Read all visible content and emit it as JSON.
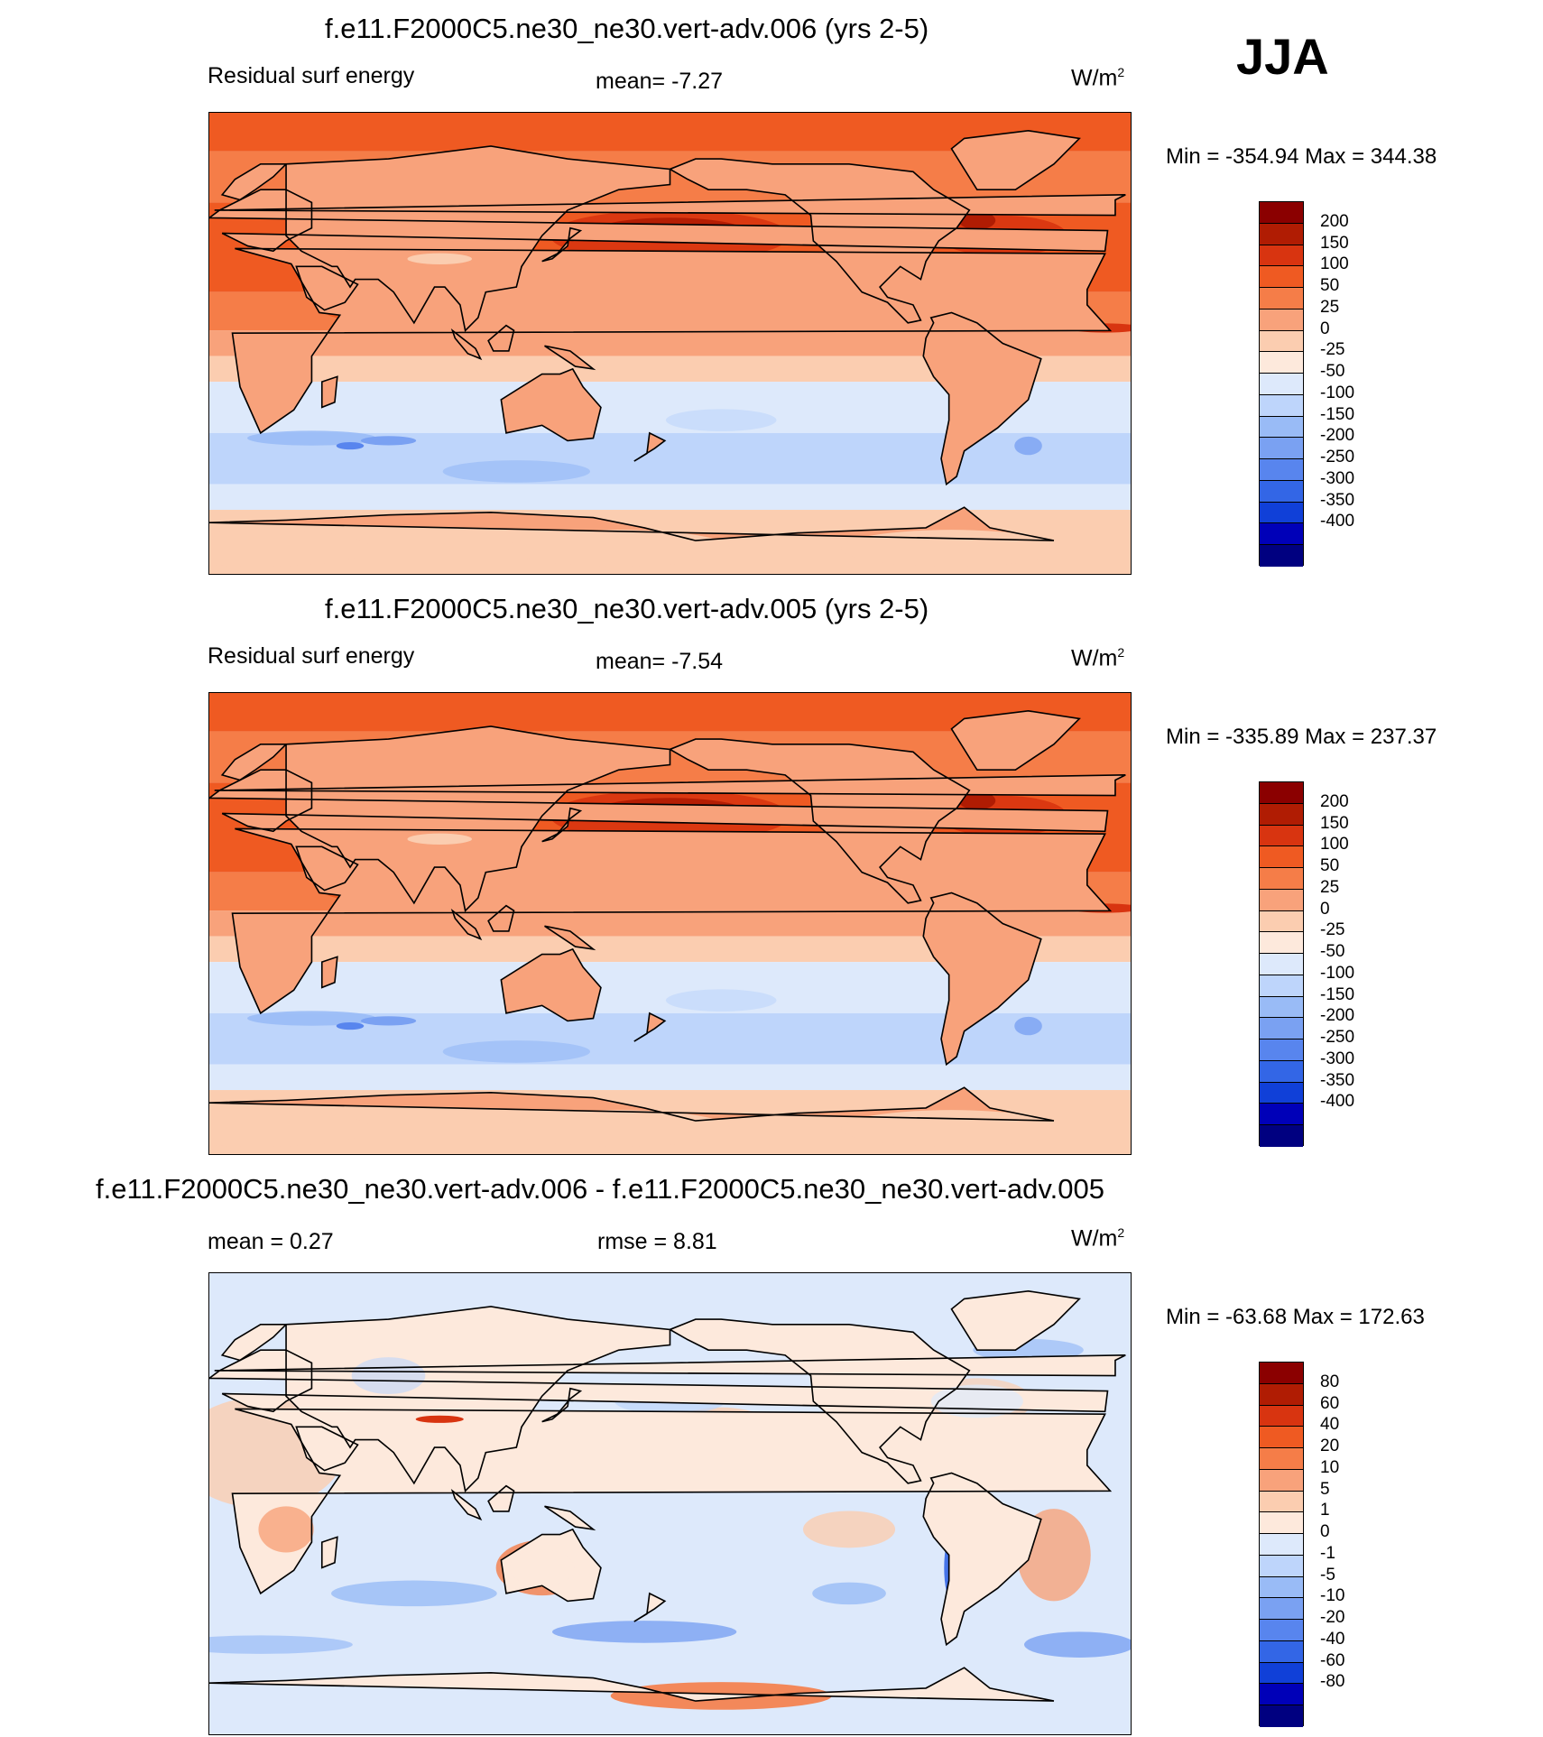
{
  "season": "JJA",
  "panels": [
    {
      "id": "p1",
      "title": "f.e11.F2000C5.ne30_ne30.vert-adv.006 (yrs 2-5)",
      "left_label": "Residual surf energy",
      "center_label": "mean=  -7.27",
      "units": "W/m",
      "units_sup": "2",
      "minmax": "Min = -354.94 Max = 344.38",
      "kind": "field",
      "colorbar": {
        "labels": [
          "200",
          "150",
          "100",
          "50",
          "25",
          "0",
          "-25",
          "-50",
          "-100",
          "-150",
          "-200",
          "-250",
          "-300",
          "-350",
          "-400"
        ],
        "colors": [
          "#8b0000",
          "#b01c03",
          "#d83410",
          "#ef5a22",
          "#f57d48",
          "#f8a27b",
          "#fbcdb0",
          "#fde9dc",
          "#dde9fb",
          "#bed5fb",
          "#99bbf6",
          "#7aa1f2",
          "#5885ee",
          "#3366e6",
          "#1040d8",
          "#0000b8",
          "#000080"
        ]
      }
    },
    {
      "id": "p2",
      "title": "f.e11.F2000C5.ne30_ne30.vert-adv.005 (yrs 2-5)",
      "left_label": "Residual surf energy",
      "center_label": "mean=  -7.54",
      "units": "W/m",
      "units_sup": "2",
      "minmax": "Min = -335.89 Max = 237.37",
      "kind": "field",
      "colorbar": {
        "labels": [
          "200",
          "150",
          "100",
          "50",
          "25",
          "0",
          "-25",
          "-50",
          "-100",
          "-150",
          "-200",
          "-250",
          "-300",
          "-350",
          "-400"
        ],
        "colors": [
          "#8b0000",
          "#b01c03",
          "#d83410",
          "#ef5a22",
          "#f57d48",
          "#f8a27b",
          "#fbcdb0",
          "#fde9dc",
          "#dde9fb",
          "#bed5fb",
          "#99bbf6",
          "#7aa1f2",
          "#5885ee",
          "#3366e6",
          "#1040d8",
          "#0000b8",
          "#000080"
        ]
      }
    },
    {
      "id": "p3",
      "title": "f.e11.F2000C5.ne30_ne30.vert-adv.006 - f.e11.F2000C5.ne30_ne30.vert-adv.005",
      "left_label": "mean =   0.27",
      "center_label": "rmse =   8.81",
      "units": "W/m",
      "units_sup": "2",
      "minmax": "Min = -63.68 Max = 172.63",
      "kind": "diff",
      "colorbar": {
        "labels": [
          "80",
          "60",
          "40",
          "20",
          "10",
          "5",
          "1",
          "0",
          "-1",
          "-5",
          "-10",
          "-20",
          "-40",
          "-60",
          "-80"
        ],
        "colors": [
          "#8b0000",
          "#b01c03",
          "#d83410",
          "#ef5a22",
          "#f57d48",
          "#f8a27b",
          "#fbcdb0",
          "#fde9dc",
          "#dde9fb",
          "#bed5fb",
          "#99bbf6",
          "#7aa1f2",
          "#5885ee",
          "#3366e6",
          "#1040d8",
          "#0000b8",
          "#000080"
        ]
      }
    }
  ]
}
